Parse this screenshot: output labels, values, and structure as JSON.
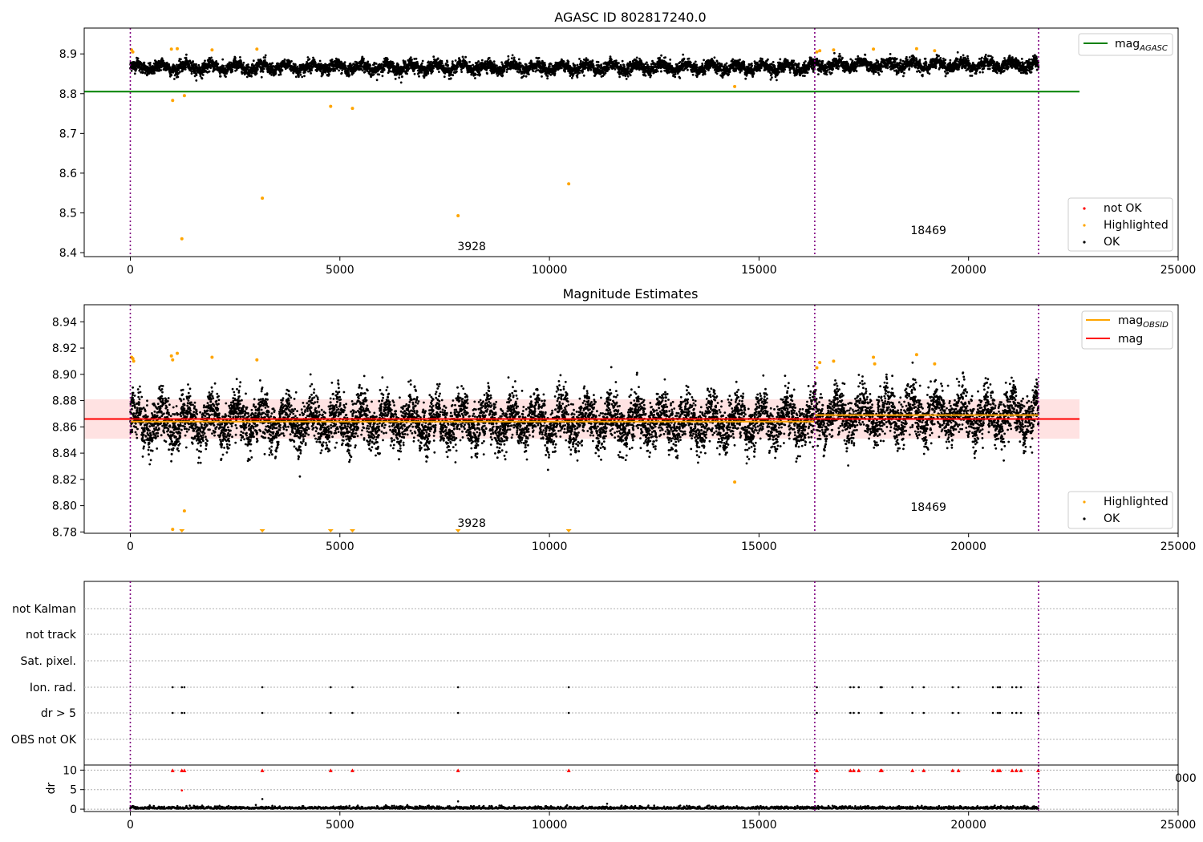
{
  "figure": {
    "title": "AGASC ID 802817240.0",
    "obsid_labels": [
      "3928",
      "18469"
    ],
    "obsid_boundaries": [
      0,
      16330,
      21670
    ],
    "colors": {
      "ok": "#000000",
      "highlighted": "#ffa500",
      "not_ok": "#ff0000",
      "agasc_line": "#008000",
      "mag_line": "#ff0000",
      "mag_obsid_line": "#ffa500",
      "band": "#ffdddd",
      "boundary": "#800080"
    }
  },
  "chart_data": [
    {
      "type": "scatter",
      "title": "AGASC ID 802817240.0",
      "xlim": [
        -1100,
        25000
      ],
      "ylim": [
        8.39,
        8.965
      ],
      "x_ticks": [
        0,
        5000,
        10000,
        15000,
        20000,
        25000
      ],
      "x_tick_labels": [
        "0",
        "5000",
        "10000",
        "15000",
        "20000",
        "25000"
      ],
      "y_ticks": [
        8.4,
        8.5,
        8.6,
        8.7,
        8.8,
        8.9
      ],
      "y_tick_labels": [
        "8.4",
        "8.5",
        "8.6",
        "8.7",
        "8.8",
        "8.9"
      ],
      "legend_top": {
        "placement": "top-right",
        "entries": [
          {
            "label": "mag",
            "subscript": "AGASC",
            "color": "#008000"
          }
        ]
      },
      "legend_bottom": {
        "placement": "bottom-right",
        "entries": [
          {
            "label": "not OK",
            "color": "#ff0000"
          },
          {
            "label": "Highlighted",
            "color": "#ffa500"
          },
          {
            "label": "OK",
            "color": "#000000"
          }
        ]
      },
      "mag_agasc": 8.805,
      "ok_band": {
        "segments": [
          [
            0,
            16330,
            8.866
          ],
          [
            16330,
            21670,
            8.872
          ]
        ],
        "width": 0.012
      },
      "highlighted": [
        [
          30,
          8.91
        ],
        [
          60,
          8.905
        ],
        [
          980,
          8.912
        ],
        [
          1010,
          8.783
        ],
        [
          1120,
          8.913
        ],
        [
          1230,
          8.435
        ],
        [
          1290,
          8.795
        ],
        [
          1950,
          8.91
        ],
        [
          3020,
          8.912
        ],
        [
          3150,
          8.537
        ],
        [
          4780,
          8.768
        ],
        [
          5300,
          8.763
        ],
        [
          7820,
          8.493
        ],
        [
          10460,
          8.573
        ],
        [
          14420,
          8.818
        ],
        [
          16380,
          8.905
        ],
        [
          16450,
          8.908
        ],
        [
          16780,
          8.91
        ],
        [
          17730,
          8.912
        ],
        [
          18760,
          8.913
        ],
        [
          19190,
          8.908
        ]
      ]
    },
    {
      "type": "scatter",
      "title": "Magnitude Estimates",
      "xlim": [
        -1100,
        25000
      ],
      "ylim": [
        8.779,
        8.953
      ],
      "x_ticks": [
        0,
        5000,
        10000,
        15000,
        20000,
        25000
      ],
      "x_tick_labels": [
        "0",
        "5000",
        "10000",
        "15000",
        "20000",
        "25000"
      ],
      "y_ticks": [
        8.78,
        8.8,
        8.82,
        8.84,
        8.86,
        8.88,
        8.9,
        8.92,
        8.94
      ],
      "y_tick_labels": [
        "8.78",
        "8.80",
        "8.82",
        "8.84",
        "8.86",
        "8.88",
        "8.90",
        "8.92",
        "8.94"
      ],
      "legend_top": {
        "placement": "top-right",
        "entries": [
          {
            "label": "mag",
            "subscript": "OBSID",
            "color": "#ffa500"
          },
          {
            "label": "mag",
            "color": "#ff0000"
          }
        ]
      },
      "legend_bottom": {
        "placement": "bottom-right",
        "entries": [
          {
            "label": "Highlighted",
            "color": "#ffa500"
          },
          {
            "label": "OK",
            "color": "#000000"
          }
        ]
      },
      "mag": 8.866,
      "mag_band": [
        8.851,
        8.881
      ],
      "mag_obsid": [
        [
          0,
          16330,
          8.864
        ],
        [
          16330,
          21670,
          8.869
        ]
      ],
      "highlighted": [
        [
          30,
          8.913
        ],
        [
          60,
          8.912
        ],
        [
          80,
          8.91
        ],
        [
          980,
          8.914
        ],
        [
          1010,
          8.911
        ],
        [
          1010,
          8.782
        ],
        [
          1120,
          8.916
        ],
        [
          1290,
          8.796
        ],
        [
          1950,
          8.913
        ],
        [
          3020,
          8.911
        ],
        [
          14420,
          8.818
        ],
        [
          16380,
          8.905
        ],
        [
          16450,
          8.909
        ],
        [
          16780,
          8.91
        ],
        [
          17730,
          8.913
        ],
        [
          17760,
          8.908
        ],
        [
          18760,
          8.915
        ],
        [
          19190,
          8.908
        ]
      ],
      "clipped_below": [
        1230,
        3150,
        4780,
        5300,
        7820,
        10460
      ]
    },
    {
      "type": "scatter",
      "title": "",
      "xlim": [
        -1100,
        25000
      ],
      "flag_labels": [
        "not Kalman",
        "not track",
        "Sat. pixel.",
        "Ion. rad.",
        "dr > 5",
        "OBS not OK"
      ],
      "flag_points": {
        "Ion. rad.": [
          1010,
          1230,
          1290,
          3150,
          4780,
          5300,
          7820,
          10460,
          16380,
          17180,
          17260,
          17380,
          17900,
          17930,
          18660,
          18930,
          19620,
          19760,
          20580,
          20700,
          20750,
          21040,
          21140,
          21250,
          21660
        ],
        "dr > 5": [
          1010,
          1230,
          1290,
          3150,
          4780,
          5300,
          7820,
          10460,
          16380,
          17180,
          17260,
          17380,
          17900,
          17930,
          18660,
          18930,
          19620,
          19760,
          20580,
          20700,
          20750,
          21040,
          21140,
          21250,
          21660
        ]
      }
    },
    {
      "type": "scatter",
      "title": "",
      "ylabel": "dr",
      "xlim": [
        -1100,
        25000
      ],
      "ylim": [
        -0.6,
        11.3
      ],
      "x_ticks": [
        0,
        5000,
        10000,
        15000,
        20000,
        25000
      ],
      "x_tick_labels": [
        "0",
        "5000",
        "10000",
        "15000",
        "20000",
        "25000"
      ],
      "y_ticks": [
        0,
        5,
        10
      ],
      "y_tick_labels": [
        "0",
        "5",
        "10"
      ],
      "clipped_high": [
        1010,
        1230,
        1290,
        3150,
        4780,
        5300,
        7820,
        10460,
        16380,
        17180,
        17260,
        17380,
        17900,
        17930,
        18660,
        18930,
        19620,
        19760,
        20580,
        20700,
        20750,
        21040,
        21140,
        21250,
        21660
      ],
      "outliers": [
        [
          1230,
          4.8
        ],
        [
          3150,
          2.6
        ],
        [
          7820,
          2.0
        ]
      ],
      "edge_label": "000"
    }
  ]
}
